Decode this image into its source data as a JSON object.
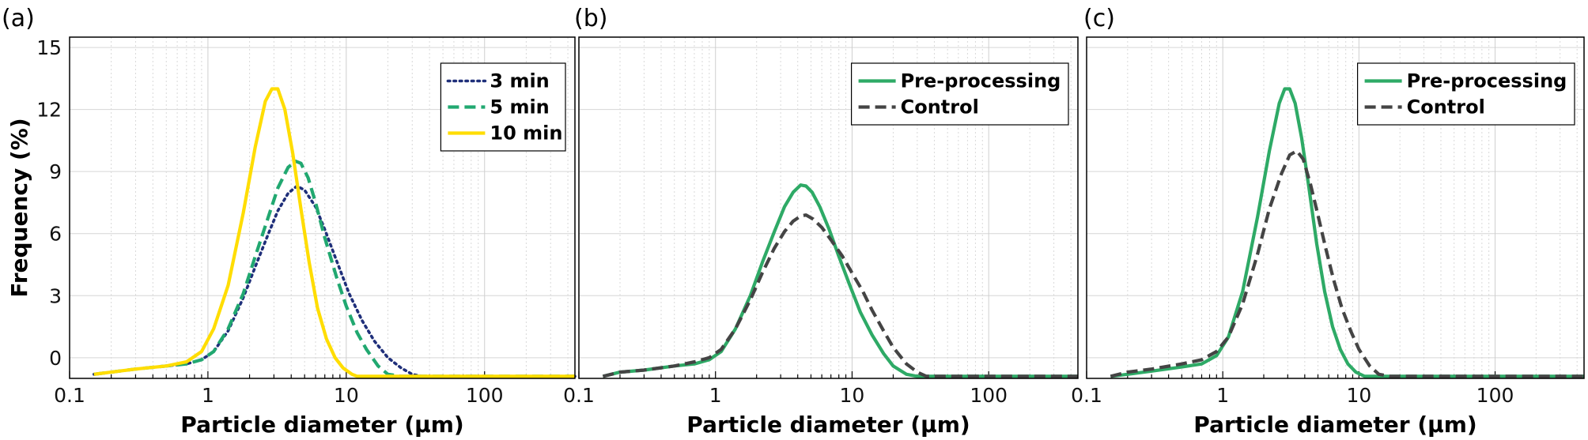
{
  "chart_data": [
    {
      "type": "line",
      "panel_label": "(a)",
      "title": "",
      "xlabel": "Particle diameter (μm)",
      "ylabel": "Frequency (%)",
      "x_scale": "log",
      "xlim": [
        0.1,
        450
      ],
      "ylim": [
        -1,
        15.5
      ],
      "x_ticks": [
        0.1,
        1,
        10,
        100
      ],
      "x_tick_labels": [
        "0.1",
        "1",
        "10",
        "100"
      ],
      "y_ticks": [
        0,
        3,
        6,
        9,
        12,
        15
      ],
      "y_tick_labels": [
        "0",
        "3",
        "6",
        "9",
        "12",
        "15"
      ],
      "legend_position": "top-right",
      "series": [
        {
          "name": "3 min",
          "color": "#1f2f7a",
          "style": "dotted",
          "x": [
            0.15,
            0.2,
            0.3,
            0.5,
            0.7,
            0.9,
            1.1,
            1.4,
            1.8,
            2.2,
            2.7,
            3.2,
            3.8,
            4.4,
            5.0,
            6.0,
            7.0,
            8.5,
            10.5,
            13,
            16,
            20,
            25,
            30,
            35,
            50,
            450
          ],
          "y": [
            -0.8,
            -0.7,
            -0.55,
            -0.4,
            -0.3,
            -0.1,
            0.3,
            1.3,
            2.9,
            4.4,
            5.9,
            7.1,
            7.95,
            8.3,
            8.1,
            7.3,
            6.2,
            4.7,
            3.1,
            1.8,
            0.8,
            0.0,
            -0.5,
            -0.8,
            -0.9,
            -0.9,
            -0.9
          ]
        },
        {
          "name": "5 min",
          "color": "#21a870",
          "style": "dashed",
          "x": [
            0.15,
            0.2,
            0.3,
            0.5,
            0.7,
            0.9,
            1.1,
            1.4,
            1.8,
            2.2,
            2.7,
            3.2,
            3.8,
            4.3,
            4.7,
            5.3,
            6.0,
            7.0,
            8.5,
            10,
            12,
            14,
            17,
            20,
            25,
            450
          ],
          "y": [
            -0.8,
            -0.7,
            -0.55,
            -0.4,
            -0.3,
            -0.1,
            0.3,
            1.4,
            3.1,
            4.9,
            6.7,
            8.2,
            9.2,
            9.5,
            9.4,
            8.7,
            7.5,
            5.8,
            3.9,
            2.5,
            1.2,
            0.4,
            -0.4,
            -0.8,
            -0.9,
            -0.9
          ]
        },
        {
          "name": "10 min",
          "color": "#ffdd00",
          "style": "solid",
          "x": [
            0.15,
            0.2,
            0.3,
            0.5,
            0.7,
            0.9,
            1.1,
            1.4,
            1.8,
            2.2,
            2.6,
            2.9,
            3.2,
            3.6,
            4.1,
            4.7,
            5.4,
            6.2,
            7.2,
            8.3,
            9.5,
            11,
            12,
            450
          ],
          "y": [
            -0.8,
            -0.7,
            -0.55,
            -0.4,
            -0.2,
            0.3,
            1.4,
            3.5,
            7.0,
            10.2,
            12.4,
            13.0,
            13.0,
            12.0,
            9.9,
            7.2,
            4.6,
            2.4,
            0.9,
            0.0,
            -0.5,
            -0.8,
            -0.9,
            -0.9
          ]
        }
      ]
    },
    {
      "type": "line",
      "panel_label": "(b)",
      "title": "",
      "xlabel": "Particle diameter (μm)",
      "ylabel": "",
      "x_scale": "log",
      "xlim": [
        0.1,
        450
      ],
      "ylim": [
        -1,
        15.5
      ],
      "x_ticks": [
        0.1,
        1,
        10,
        100
      ],
      "x_tick_labels": [
        "0.1",
        "1",
        "10",
        "100"
      ],
      "legend_position": "top-right",
      "series": [
        {
          "name": "Pre-processing",
          "color": "#2eaa66",
          "style": "solid",
          "x": [
            0.15,
            0.2,
            0.3,
            0.5,
            0.7,
            0.9,
            1.1,
            1.4,
            1.8,
            2.2,
            2.7,
            3.2,
            3.7,
            4.2,
            4.6,
            5.1,
            5.8,
            6.8,
            8.0,
            9.5,
            11.5,
            14,
            17,
            20,
            25,
            30,
            35,
            40,
            450
          ],
          "y": [
            -0.9,
            -0.7,
            -0.6,
            -0.4,
            -0.3,
            -0.1,
            0.3,
            1.4,
            3.0,
            4.6,
            6.1,
            7.3,
            8.0,
            8.35,
            8.3,
            8.0,
            7.3,
            6.2,
            4.9,
            3.6,
            2.2,
            1.1,
            0.2,
            -0.4,
            -0.8,
            -0.9,
            -0.9,
            -0.9,
            -0.9
          ]
        },
        {
          "name": "Control",
          "color": "#444444",
          "style": "dashed",
          "x": [
            0.15,
            0.2,
            0.3,
            0.5,
            0.7,
            0.9,
            1.1,
            1.4,
            1.8,
            2.2,
            2.7,
            3.2,
            3.7,
            4.2,
            4.6,
            5.2,
            6.0,
            7.0,
            8.5,
            10,
            12,
            14,
            17,
            20,
            25,
            30,
            35,
            40,
            450
          ],
          "y": [
            -0.9,
            -0.7,
            -0.6,
            -0.4,
            -0.2,
            0.0,
            0.4,
            1.4,
            2.8,
            4.1,
            5.3,
            6.1,
            6.6,
            6.85,
            6.9,
            6.7,
            6.3,
            5.7,
            4.9,
            4.1,
            3.2,
            2.3,
            1.3,
            0.5,
            -0.3,
            -0.7,
            -0.9,
            -0.9,
            -0.9
          ]
        }
      ]
    },
    {
      "type": "line",
      "panel_label": "(c)",
      "title": "",
      "xlabel": "Particle diameter (μm)",
      "ylabel": "",
      "x_scale": "log",
      "xlim": [
        0.1,
        450
      ],
      "ylim": [
        -1,
        15.5
      ],
      "x_ticks": [
        0.1,
        1,
        10,
        100
      ],
      "x_tick_labels": [
        "0.1",
        "1",
        "10",
        "100"
      ],
      "legend_position": "top-right",
      "series": [
        {
          "name": "Pre-processing",
          "color": "#2eaa66",
          "style": "solid",
          "x": [
            0.15,
            0.2,
            0.3,
            0.5,
            0.7,
            0.9,
            1.1,
            1.4,
            1.8,
            2.2,
            2.6,
            2.85,
            3.1,
            3.4,
            3.8,
            4.3,
            4.9,
            5.6,
            6.4,
            7.3,
            8.3,
            9.5,
            11,
            12,
            450
          ],
          "y": [
            -0.9,
            -0.8,
            -0.65,
            -0.45,
            -0.3,
            0.1,
            1.0,
            3.2,
            6.8,
            10.0,
            12.3,
            13.0,
            13.0,
            12.3,
            10.6,
            8.2,
            5.5,
            3.2,
            1.5,
            0.4,
            -0.3,
            -0.7,
            -0.9,
            -0.9,
            -0.9
          ]
        },
        {
          "name": "Control",
          "color": "#444444",
          "style": "dashed",
          "x": [
            0.15,
            0.2,
            0.3,
            0.5,
            0.7,
            0.9,
            1.1,
            1.4,
            1.8,
            2.2,
            2.7,
            3.1,
            3.5,
            3.9,
            4.4,
            5.0,
            5.7,
            6.5,
            7.5,
            8.7,
            10,
            12,
            14,
            17,
            20,
            25,
            450
          ],
          "y": [
            -0.9,
            -0.7,
            -0.55,
            -0.3,
            -0.1,
            0.3,
            1.0,
            2.6,
            5.0,
            7.2,
            8.9,
            9.8,
            10.0,
            9.6,
            8.4,
            6.9,
            5.3,
            3.8,
            2.4,
            1.3,
            0.4,
            -0.4,
            -0.8,
            -0.9,
            -0.9,
            -0.9,
            -0.9
          ]
        }
      ]
    }
  ]
}
